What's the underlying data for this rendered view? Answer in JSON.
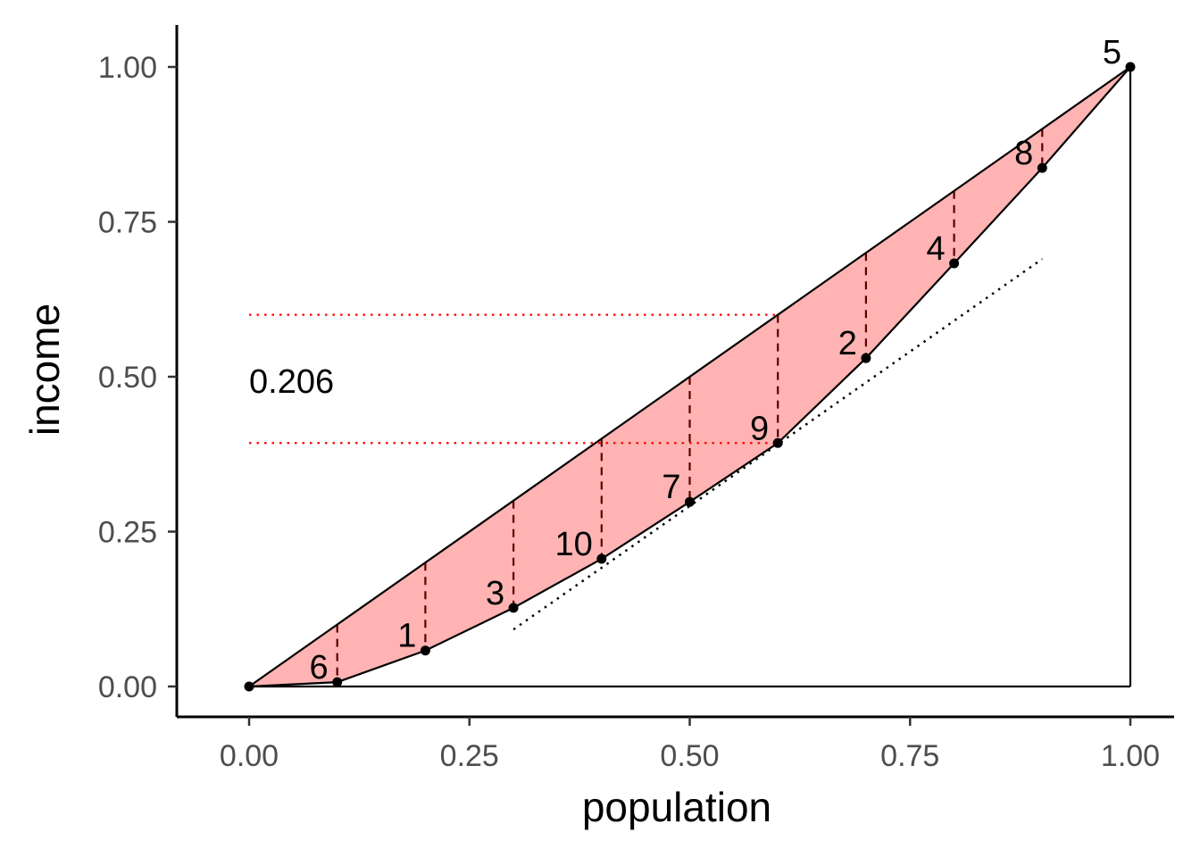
{
  "chart_data": {
    "type": "line",
    "title": "",
    "xlabel": "population",
    "ylabel": "income",
    "xlim": [
      -0.082,
      1.05
    ],
    "ylim": [
      -0.049,
      1.068
    ],
    "grid": false,
    "x_ticks": [
      "0.00",
      "0.25",
      "0.50",
      "0.75",
      "1.00"
    ],
    "y_ticks": [
      "0.00",
      "0.25",
      "0.50",
      "0.75",
      "1.00"
    ],
    "lorenz_curve": {
      "x": [
        0,
        0.1,
        0.2,
        0.3,
        0.4,
        0.5,
        0.6,
        0.7,
        0.8,
        0.9,
        1.0
      ],
      "y": [
        0,
        0.007,
        0.058,
        0.127,
        0.206,
        0.298,
        0.393,
        0.53,
        0.683,
        0.837,
        1.0
      ],
      "labels": [
        "",
        "6",
        "1",
        "3",
        "10",
        "7",
        "9",
        "2",
        "4",
        "8",
        "5"
      ]
    },
    "equality_line": {
      "x": [
        0,
        1
      ],
      "y": [
        0,
        1
      ]
    },
    "fill_color": "#FFB3B3",
    "dashed_color": "#5A0000",
    "reference_lines": [
      {
        "type": "hline",
        "y": 0.6,
        "x_range": [
          0,
          0.6
        ],
        "color": "#FF0000",
        "style": "dotted"
      },
      {
        "type": "hline",
        "y": 0.393,
        "x_range": [
          0,
          0.6
        ],
        "color": "#FF0000",
        "style": "dotted"
      }
    ],
    "tangent_line": {
      "x": [
        0.3,
        0.9
      ],
      "y": [
        0.092,
        0.69
      ],
      "style": "dotted"
    },
    "annotation": {
      "text": "0.206",
      "x": 0,
      "y": 0.49
    }
  }
}
